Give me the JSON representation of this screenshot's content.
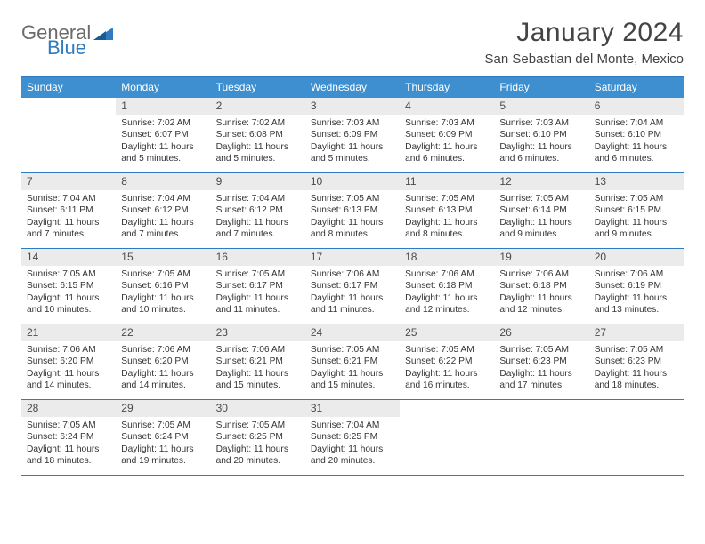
{
  "brand": {
    "part1": "General",
    "part2": "Blue"
  },
  "title": "January 2024",
  "location": "San Sebastian del Monte, Mexico",
  "weekdays": [
    "Sunday",
    "Monday",
    "Tuesday",
    "Wednesday",
    "Thursday",
    "Friday",
    "Saturday"
  ],
  "colors": {
    "header_bg": "#3d8fcf",
    "header_text": "#ffffff",
    "divider": "#2f7bbf",
    "daynum_bg": "#ebebeb",
    "text": "#333333",
    "logo_gray": "#6b6b6b",
    "logo_blue": "#2f7bbf"
  },
  "weeks": [
    [
      {
        "n": "",
        "sr": "",
        "ss": "",
        "dl": ""
      },
      {
        "n": "1",
        "sr": "7:02 AM",
        "ss": "6:07 PM",
        "dl": "11 hours and 5 minutes."
      },
      {
        "n": "2",
        "sr": "7:02 AM",
        "ss": "6:08 PM",
        "dl": "11 hours and 5 minutes."
      },
      {
        "n": "3",
        "sr": "7:03 AM",
        "ss": "6:09 PM",
        "dl": "11 hours and 5 minutes."
      },
      {
        "n": "4",
        "sr": "7:03 AM",
        "ss": "6:09 PM",
        "dl": "11 hours and 6 minutes."
      },
      {
        "n": "5",
        "sr": "7:03 AM",
        "ss": "6:10 PM",
        "dl": "11 hours and 6 minutes."
      },
      {
        "n": "6",
        "sr": "7:04 AM",
        "ss": "6:10 PM",
        "dl": "11 hours and 6 minutes."
      }
    ],
    [
      {
        "n": "7",
        "sr": "7:04 AM",
        "ss": "6:11 PM",
        "dl": "11 hours and 7 minutes."
      },
      {
        "n": "8",
        "sr": "7:04 AM",
        "ss": "6:12 PM",
        "dl": "11 hours and 7 minutes."
      },
      {
        "n": "9",
        "sr": "7:04 AM",
        "ss": "6:12 PM",
        "dl": "11 hours and 7 minutes."
      },
      {
        "n": "10",
        "sr": "7:05 AM",
        "ss": "6:13 PM",
        "dl": "11 hours and 8 minutes."
      },
      {
        "n": "11",
        "sr": "7:05 AM",
        "ss": "6:13 PM",
        "dl": "11 hours and 8 minutes."
      },
      {
        "n": "12",
        "sr": "7:05 AM",
        "ss": "6:14 PM",
        "dl": "11 hours and 9 minutes."
      },
      {
        "n": "13",
        "sr": "7:05 AM",
        "ss": "6:15 PM",
        "dl": "11 hours and 9 minutes."
      }
    ],
    [
      {
        "n": "14",
        "sr": "7:05 AM",
        "ss": "6:15 PM",
        "dl": "11 hours and 10 minutes."
      },
      {
        "n": "15",
        "sr": "7:05 AM",
        "ss": "6:16 PM",
        "dl": "11 hours and 10 minutes."
      },
      {
        "n": "16",
        "sr": "7:05 AM",
        "ss": "6:17 PM",
        "dl": "11 hours and 11 minutes."
      },
      {
        "n": "17",
        "sr": "7:06 AM",
        "ss": "6:17 PM",
        "dl": "11 hours and 11 minutes."
      },
      {
        "n": "18",
        "sr": "7:06 AM",
        "ss": "6:18 PM",
        "dl": "11 hours and 12 minutes."
      },
      {
        "n": "19",
        "sr": "7:06 AM",
        "ss": "6:18 PM",
        "dl": "11 hours and 12 minutes."
      },
      {
        "n": "20",
        "sr": "7:06 AM",
        "ss": "6:19 PM",
        "dl": "11 hours and 13 minutes."
      }
    ],
    [
      {
        "n": "21",
        "sr": "7:06 AM",
        "ss": "6:20 PM",
        "dl": "11 hours and 14 minutes."
      },
      {
        "n": "22",
        "sr": "7:06 AM",
        "ss": "6:20 PM",
        "dl": "11 hours and 14 minutes."
      },
      {
        "n": "23",
        "sr": "7:06 AM",
        "ss": "6:21 PM",
        "dl": "11 hours and 15 minutes."
      },
      {
        "n": "24",
        "sr": "7:05 AM",
        "ss": "6:21 PM",
        "dl": "11 hours and 15 minutes."
      },
      {
        "n": "25",
        "sr": "7:05 AM",
        "ss": "6:22 PM",
        "dl": "11 hours and 16 minutes."
      },
      {
        "n": "26",
        "sr": "7:05 AM",
        "ss": "6:23 PM",
        "dl": "11 hours and 17 minutes."
      },
      {
        "n": "27",
        "sr": "7:05 AM",
        "ss": "6:23 PM",
        "dl": "11 hours and 18 minutes."
      }
    ],
    [
      {
        "n": "28",
        "sr": "7:05 AM",
        "ss": "6:24 PM",
        "dl": "11 hours and 18 minutes."
      },
      {
        "n": "29",
        "sr": "7:05 AM",
        "ss": "6:24 PM",
        "dl": "11 hours and 19 minutes."
      },
      {
        "n": "30",
        "sr": "7:05 AM",
        "ss": "6:25 PM",
        "dl": "11 hours and 20 minutes."
      },
      {
        "n": "31",
        "sr": "7:04 AM",
        "ss": "6:25 PM",
        "dl": "11 hours and 20 minutes."
      },
      {
        "n": "",
        "sr": "",
        "ss": "",
        "dl": ""
      },
      {
        "n": "",
        "sr": "",
        "ss": "",
        "dl": ""
      },
      {
        "n": "",
        "sr": "",
        "ss": "",
        "dl": ""
      }
    ]
  ],
  "labels": {
    "sunrise": "Sunrise:",
    "sunset": "Sunset:",
    "daylight": "Daylight:"
  }
}
